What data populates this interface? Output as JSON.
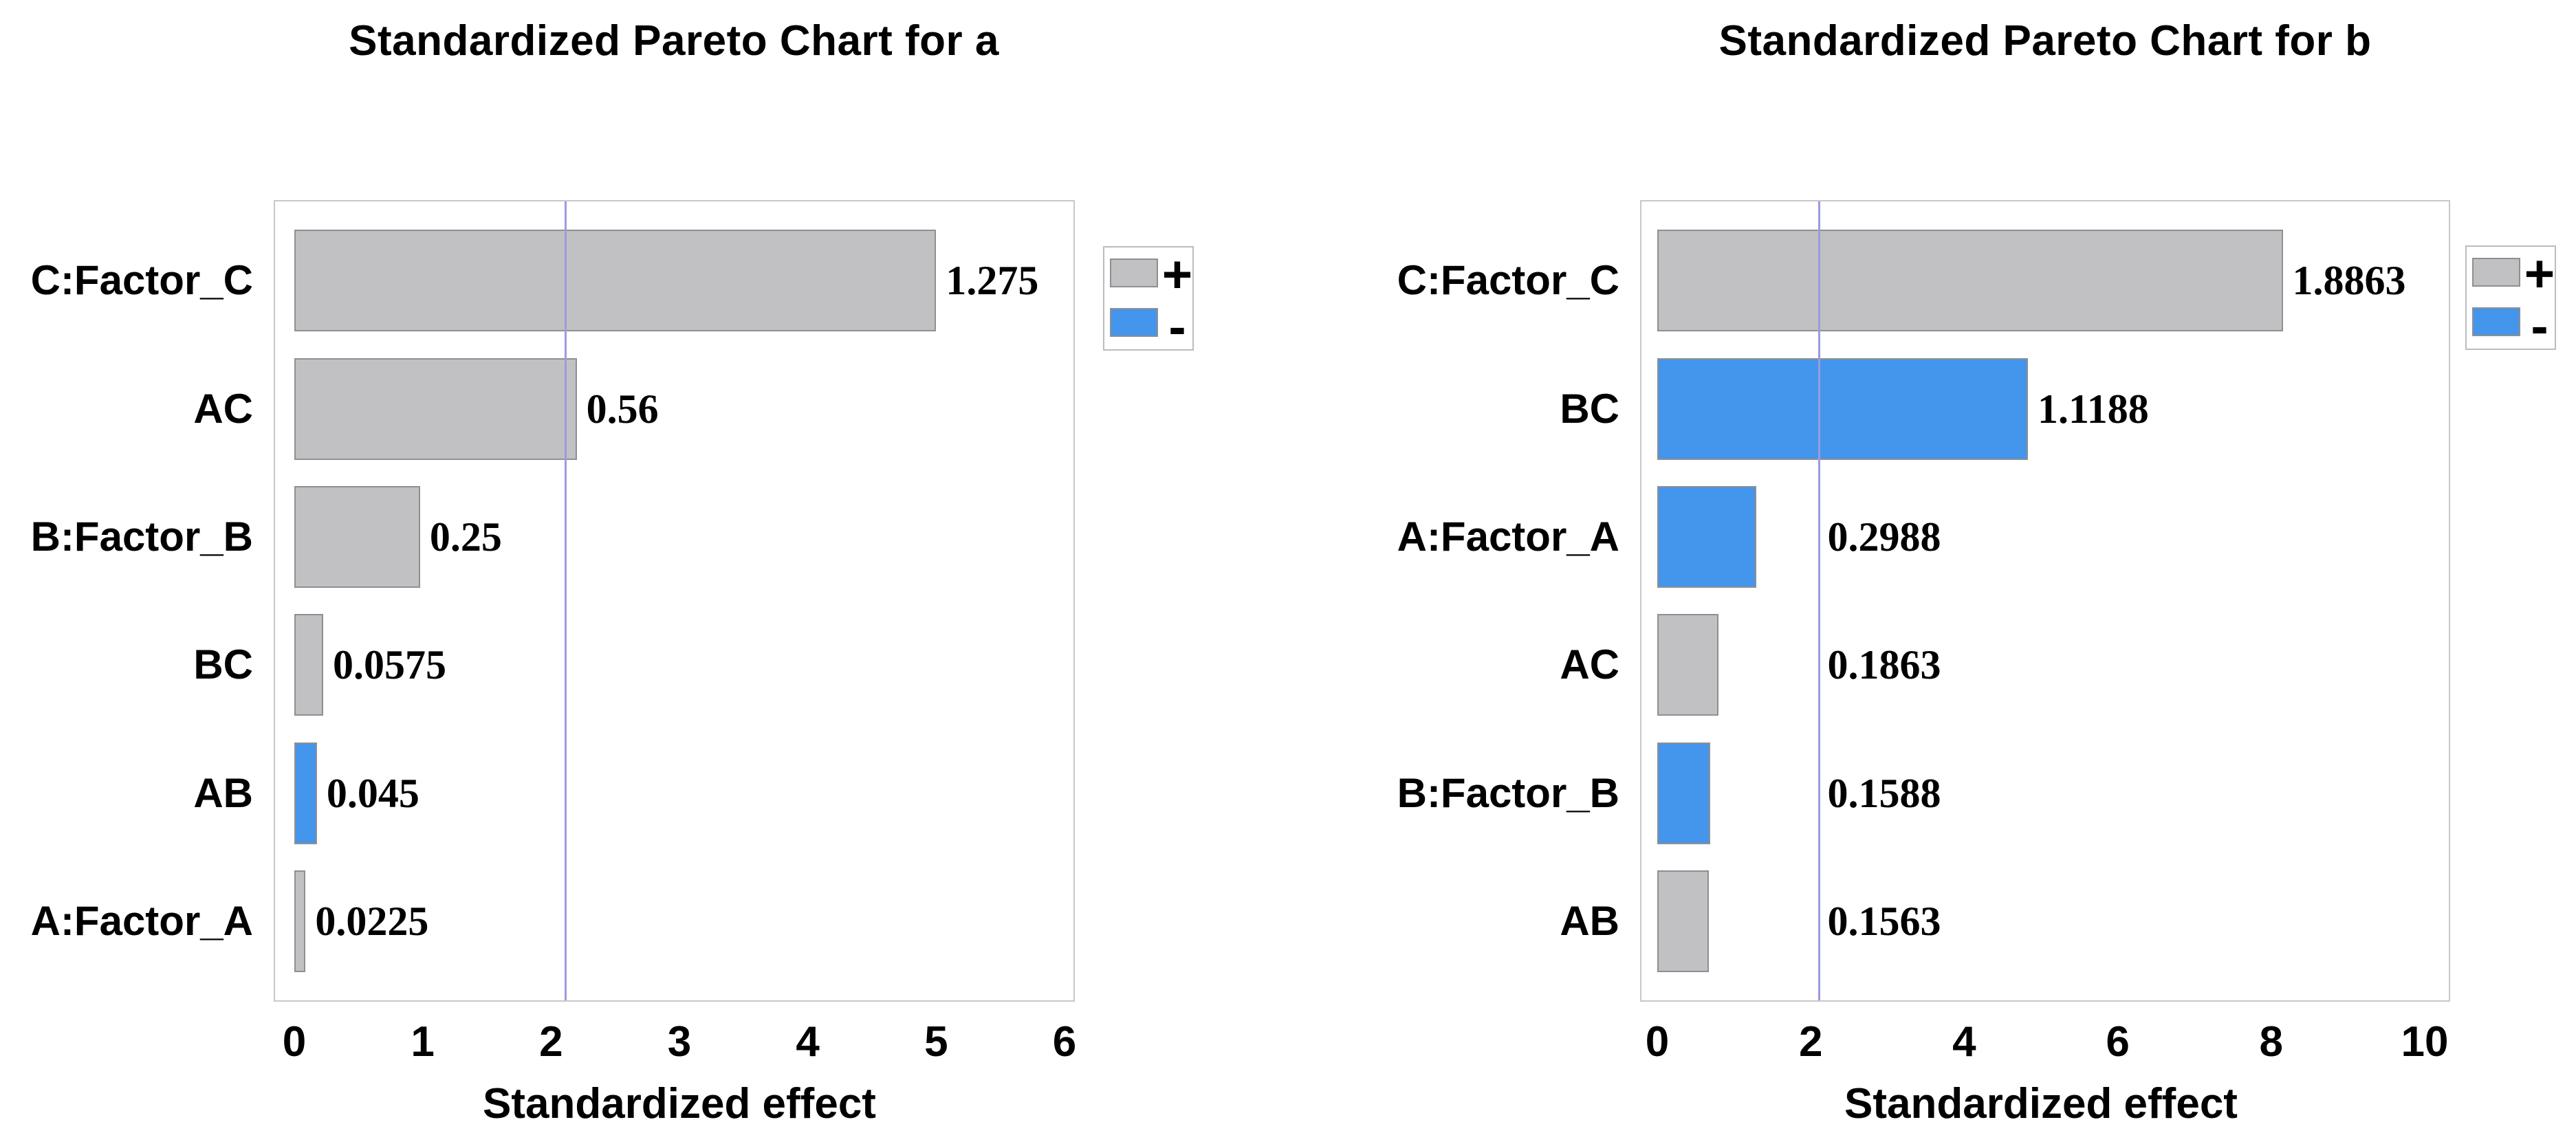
{
  "page_background": "#ffffff",
  "colors": {
    "positive_bar": "#c1c1c3",
    "negative_bar": "#4495ec",
    "bar_border": "#8f8f91",
    "reference_line": "#9b9be0",
    "plot_border": "#c8c8c8",
    "legend_border": "#bcbcbc",
    "text": "#000000"
  },
  "chart_data": [
    {
      "type": "bar",
      "orientation": "horizontal",
      "title": "Standardized Pareto Chart for a",
      "xlabel": "Standardized effect",
      "xlim": [
        0,
        6
      ],
      "x_ticks": [
        0,
        1,
        2,
        3,
        4,
        5,
        6
      ],
      "reference_line_x": 2.11,
      "grid": false,
      "legend_position": "outside-top-right",
      "legend": [
        {
          "label": "+",
          "series": "positive",
          "color": "#c1c1c3"
        },
        {
          "label": "-",
          "series": "negative",
          "color": "#4495ec"
        }
      ],
      "categories": [
        "C:Factor_C",
        "AC",
        "B:Factor_B",
        "BC",
        "AB",
        "A:Factor_A"
      ],
      "values": [
        5.0,
        2.2,
        0.98,
        0.225,
        0.176,
        0.088
      ],
      "bar_labels": [
        "1.275",
        "0.56",
        "0.25",
        "0.0575",
        "0.045",
        "0.0225"
      ],
      "effects": [
        1.275,
        0.56,
        0.25,
        0.0575,
        0.045,
        0.0225
      ],
      "signs": [
        "positive",
        "positive",
        "positive",
        "positive",
        "negative",
        "positive"
      ]
    },
    {
      "type": "bar",
      "orientation": "horizontal",
      "title": "Standardized Pareto Chart for b",
      "xlabel": "Standardized effect",
      "xlim": [
        0,
        10
      ],
      "x_ticks": [
        0,
        2,
        4,
        6,
        8,
        10
      ],
      "reference_line_x": 2.11,
      "grid": false,
      "legend_position": "outside-top-right",
      "legend": [
        {
          "label": "+",
          "series": "positive",
          "color": "#c1c1c3"
        },
        {
          "label": "-",
          "series": "negative",
          "color": "#4495ec"
        }
      ],
      "categories": [
        "C:Factor_C",
        "BC",
        "A:Factor_A",
        "AC",
        "B:Factor_B",
        "AB"
      ],
      "values": [
        8.15,
        4.83,
        1.29,
        0.8,
        0.69,
        0.675
      ],
      "bar_labels": [
        "1.8863",
        "1.1188",
        "0.2988",
        "0.1863",
        "0.1588",
        "0.1563"
      ],
      "effects": [
        1.8863,
        1.1188,
        0.2988,
        0.1863,
        0.1588,
        0.1563
      ],
      "signs": [
        "positive",
        "negative",
        "negative",
        "positive",
        "negative",
        "positive"
      ]
    }
  ]
}
